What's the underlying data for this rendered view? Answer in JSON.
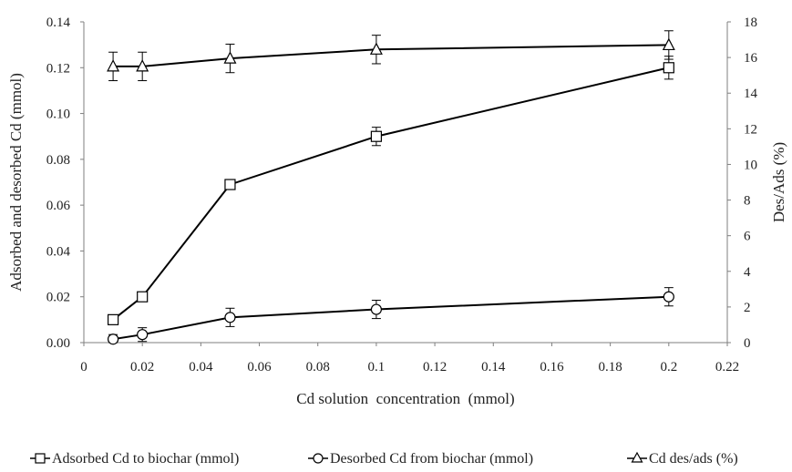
{
  "chart_data": {
    "type": "line",
    "xlabel": "Cd solution  concentration  (mmol)",
    "ylabel": "Adsorbed and desorbed Cd (mmol)",
    "y2label": "Des/Ads (%)",
    "xlim": [
      0,
      0.22
    ],
    "ylim": [
      0,
      0.14
    ],
    "y2lim": [
      0,
      18
    ],
    "x_ticks": [
      "0",
      "0.02",
      "0.04",
      "0.06",
      "0.08",
      "0.1",
      "0.12",
      "0.14",
      "0.16",
      "0.18",
      "0.2",
      "0.22"
    ],
    "y_ticks": [
      "0.00",
      "0.02",
      "0.04",
      "0.06",
      "0.08",
      "0.10",
      "0.12",
      "0.14"
    ],
    "y2_ticks": [
      "0",
      "2",
      "4",
      "6",
      "8",
      "10",
      "12",
      "14",
      "16",
      "18"
    ],
    "grid": false,
    "legend_position": "bottom",
    "series": [
      {
        "name": "Adsorbed Cd to biochar (mmol)",
        "axis": "left",
        "marker": "square",
        "x": [
          0.01,
          0.02,
          0.05,
          0.1,
          0.2
        ],
        "values": [
          0.01,
          0.02,
          0.069,
          0.09,
          0.12
        ],
        "errors": [
          0.0008,
          0.0008,
          0.002,
          0.004,
          0.005
        ]
      },
      {
        "name": "Desorbed Cd from biochar (mmol)",
        "axis": "left",
        "marker": "circle",
        "x": [
          0.01,
          0.02,
          0.05,
          0.1,
          0.2
        ],
        "values": [
          0.0015,
          0.0035,
          0.011,
          0.0145,
          0.02
        ],
        "errors": [
          0.002,
          0.003,
          0.004,
          0.004,
          0.004
        ]
      },
      {
        "name": "Cd des/ads (%)",
        "axis": "right",
        "marker": "triangle",
        "x": [
          0.01,
          0.02,
          0.05,
          0.1,
          0.2
        ],
        "values": [
          15.5,
          15.5,
          15.95,
          16.45,
          16.7
        ],
        "errors": [
          0.8,
          0.8,
          0.8,
          0.8,
          0.8
        ]
      }
    ]
  }
}
